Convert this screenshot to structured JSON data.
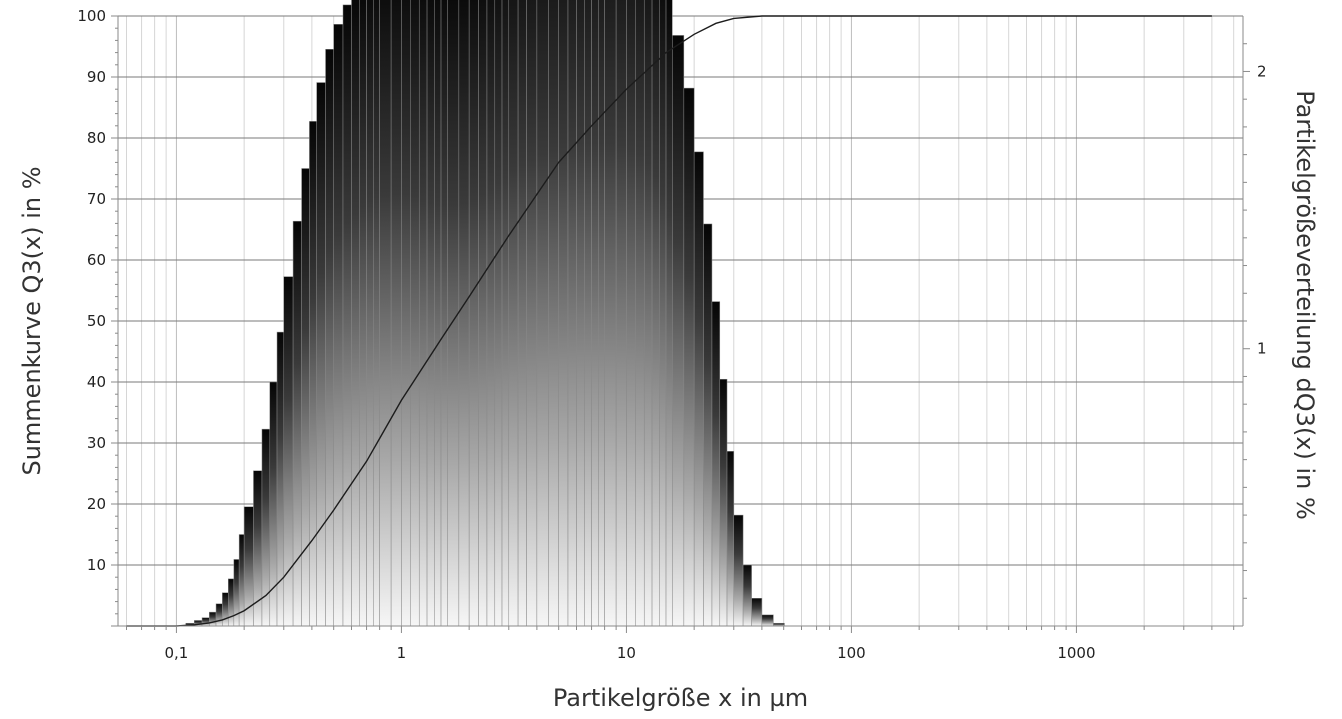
{
  "chart_data": {
    "type": "bar",
    "title": "",
    "xlabel": "Partikelgröße x in µm",
    "ylabel_left": "Summenkurve Q3(x) in %",
    "ylabel_right": "Partikelgrößeverteilung dQ3(x) in %",
    "x_scale": "log",
    "xlim": [
      0.055,
      5500
    ],
    "ylim_left": [
      0,
      100
    ],
    "ylim_right": [
      0,
      2.2
    ],
    "grid": true,
    "legend": "none",
    "x_ticks": [
      {
        "value": 0.1,
        "label": "0,1"
      },
      {
        "value": 1,
        "label": "1"
      },
      {
        "value": 10,
        "label": "10"
      },
      {
        "value": 100,
        "label": "100"
      },
      {
        "value": 1000,
        "label": "1000"
      }
    ],
    "y_left_ticks": [
      {
        "value": 10,
        "label": "10"
      },
      {
        "value": 20,
        "label": "20"
      },
      {
        "value": 30,
        "label": "30"
      },
      {
        "value": 40,
        "label": "40"
      },
      {
        "value": 50,
        "label": "50"
      },
      {
        "value": 60,
        "label": "60"
      },
      {
        "value": 70,
        "label": "70"
      },
      {
        "value": 80,
        "label": "80"
      },
      {
        "value": 90,
        "label": "90"
      },
      {
        "value": 100,
        "label": "100"
      }
    ],
    "y_right_ticks": [
      {
        "value": 1,
        "label": "1"
      },
      {
        "value": 2,
        "label": "2"
      }
    ],
    "series": [
      {
        "kind": "histogram",
        "axis": "right",
        "bins": [
          [
            0.11,
            0.01
          ],
          [
            0.12,
            0.02
          ],
          [
            0.13,
            0.03
          ],
          [
            0.14,
            0.05
          ],
          [
            0.15,
            0.08
          ],
          [
            0.16,
            0.12
          ],
          [
            0.17,
            0.17
          ],
          [
            0.18,
            0.24
          ],
          [
            0.19,
            0.33
          ],
          [
            0.2,
            0.43
          ],
          [
            0.22,
            0.56
          ],
          [
            0.24,
            0.71
          ],
          [
            0.26,
            0.88
          ],
          [
            0.28,
            1.06
          ],
          [
            0.3,
            1.26
          ],
          [
            0.33,
            1.46
          ],
          [
            0.36,
            1.65
          ],
          [
            0.39,
            1.82
          ],
          [
            0.42,
            1.96
          ],
          [
            0.46,
            2.08
          ],
          [
            0.5,
            2.17
          ],
          [
            0.55,
            2.24
          ],
          [
            0.6,
            2.29
          ],
          [
            0.65,
            2.33
          ],
          [
            0.7,
            2.36
          ],
          [
            0.75,
            2.38
          ],
          [
            0.8,
            2.39
          ],
          [
            0.9,
            2.4
          ],
          [
            1.0,
            2.4
          ],
          [
            1.1,
            2.39
          ],
          [
            1.2,
            2.37
          ],
          [
            1.3,
            2.35
          ],
          [
            1.4,
            2.34
          ],
          [
            1.5,
            2.34
          ],
          [
            1.6,
            2.34
          ],
          [
            1.8,
            2.35
          ],
          [
            2.0,
            2.37
          ],
          [
            2.2,
            2.4
          ],
          [
            2.4,
            2.43
          ],
          [
            2.6,
            2.46
          ],
          [
            2.8,
            2.49
          ],
          [
            3.0,
            2.53
          ],
          [
            3.3,
            2.56
          ],
          [
            3.6,
            2.59
          ],
          [
            4.0,
            2.62
          ],
          [
            4.5,
            2.64
          ],
          [
            5.0,
            2.66
          ],
          [
            5.5,
            2.67
          ],
          [
            6.0,
            2.68
          ],
          [
            6.5,
            2.68
          ],
          [
            7.0,
            2.68
          ],
          [
            7.5,
            2.68
          ],
          [
            8.0,
            2.68
          ],
          [
            9.0,
            2.67
          ],
          [
            10.0,
            2.65
          ],
          [
            11.0,
            2.62
          ],
          [
            12.0,
            2.57
          ],
          [
            13.0,
            2.5
          ],
          [
            14.0,
            2.4
          ],
          [
            15.0,
            2.28
          ],
          [
            16.0,
            2.13
          ],
          [
            18.0,
            1.94
          ],
          [
            20.0,
            1.71
          ],
          [
            22.0,
            1.45
          ],
          [
            24.0,
            1.17
          ],
          [
            26.0,
            0.89
          ],
          [
            28.0,
            0.63
          ],
          [
            30.0,
            0.4
          ],
          [
            33.0,
            0.22
          ],
          [
            36.0,
            0.1
          ],
          [
            40.0,
            0.04
          ],
          [
            45.0,
            0.01
          ]
        ]
      },
      {
        "kind": "cumulative-curve",
        "axis": "left",
        "x": [
          0.06,
          0.1,
          0.12,
          0.14,
          0.16,
          0.18,
          0.2,
          0.25,
          0.3,
          0.4,
          0.5,
          0.7,
          1.0,
          1.5,
          2.0,
          3.0,
          5.0,
          7.0,
          10.0,
          15.0,
          20.0,
          25.0,
          30.0,
          40.0,
          50.0,
          100.0,
          1000.0,
          4000.0
        ],
        "y": [
          0,
          0,
          0.2,
          0.5,
          1,
          1.7,
          2.5,
          5,
          8,
          14,
          19,
          27,
          37,
          47,
          54,
          64,
          76,
          82,
          88,
          94,
          97,
          98.8,
          99.6,
          100,
          100,
          100,
          100,
          100
        ]
      }
    ]
  }
}
